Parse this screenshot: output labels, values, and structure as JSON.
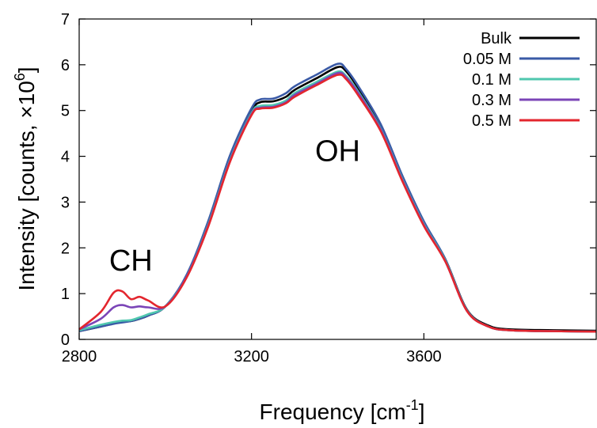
{
  "chart_data": {
    "type": "line",
    "xlabel": "Frequency [cm",
    "xlabel_sup": "-1",
    "xlabel_tail": "]",
    "ylabel": "Intensity [counts, ×10",
    "ylabel_sup": "6",
    "ylabel_tail": "]",
    "xlim": [
      2800,
      4000
    ],
    "ylim": [
      0,
      7
    ],
    "xticks": [
      2800,
      3200,
      3600
    ],
    "yticks": [
      0,
      1,
      2,
      3,
      4,
      5,
      6,
      7
    ],
    "grid": false,
    "legend_position": "top-right",
    "annotations": [
      {
        "text": "CH",
        "x": 2920,
        "y": 1.5
      },
      {
        "text": "OH",
        "x": 3400,
        "y": 3.9
      }
    ],
    "x": [
      2800,
      2850,
      2880,
      2900,
      2920,
      2940,
      2960,
      3000,
      3050,
      3100,
      3150,
      3200,
      3220,
      3250,
      3280,
      3300,
      3350,
      3400,
      3420,
      3450,
      3500,
      3550,
      3600,
      3650,
      3700,
      3750,
      3800,
      3900,
      4000
    ],
    "series": [
      {
        "name": "Bulk",
        "color": "#000000",
        "values": [
          0.18,
          0.28,
          0.35,
          0.38,
          0.4,
          0.45,
          0.52,
          0.72,
          1.4,
          2.55,
          3.95,
          4.98,
          5.18,
          5.2,
          5.3,
          5.45,
          5.7,
          5.95,
          5.85,
          5.45,
          4.65,
          3.55,
          2.55,
          1.75,
          0.65,
          0.3,
          0.22,
          0.2,
          0.19
        ]
      },
      {
        "name": "0.05 M",
        "color": "#3a5aa6",
        "values": [
          0.18,
          0.28,
          0.34,
          0.37,
          0.4,
          0.45,
          0.52,
          0.72,
          1.42,
          2.6,
          4.02,
          5.05,
          5.24,
          5.26,
          5.38,
          5.53,
          5.78,
          6.02,
          5.9,
          5.5,
          4.7,
          3.58,
          2.58,
          1.75,
          0.64,
          0.28,
          0.2,
          0.18,
          0.17
        ]
      },
      {
        "name": "0.1 M",
        "color": "#4fc7ae",
        "values": [
          0.2,
          0.32,
          0.38,
          0.41,
          0.42,
          0.48,
          0.55,
          0.72,
          1.38,
          2.52,
          3.92,
          4.95,
          5.1,
          5.12,
          5.22,
          5.38,
          5.62,
          5.85,
          5.75,
          5.38,
          4.6,
          3.5,
          2.52,
          1.72,
          0.63,
          0.28,
          0.2,
          0.18,
          0.17
        ]
      },
      {
        "name": "0.3 M",
        "color": "#7b45b7",
        "values": [
          0.22,
          0.45,
          0.7,
          0.75,
          0.7,
          0.72,
          0.7,
          0.72,
          1.38,
          2.5,
          3.9,
          4.92,
          5.06,
          5.08,
          5.18,
          5.34,
          5.58,
          5.82,
          5.72,
          5.35,
          4.58,
          3.48,
          2.5,
          1.7,
          0.62,
          0.28,
          0.2,
          0.18,
          0.17
        ]
      },
      {
        "name": "0.5 M",
        "color": "#e3262e",
        "values": [
          0.22,
          0.6,
          1.02,
          1.05,
          0.88,
          0.93,
          0.85,
          0.72,
          1.36,
          2.48,
          3.88,
          4.9,
          5.04,
          5.06,
          5.16,
          5.3,
          5.55,
          5.78,
          5.68,
          5.3,
          4.55,
          3.46,
          2.48,
          1.7,
          0.62,
          0.28,
          0.2,
          0.18,
          0.17
        ]
      }
    ]
  }
}
